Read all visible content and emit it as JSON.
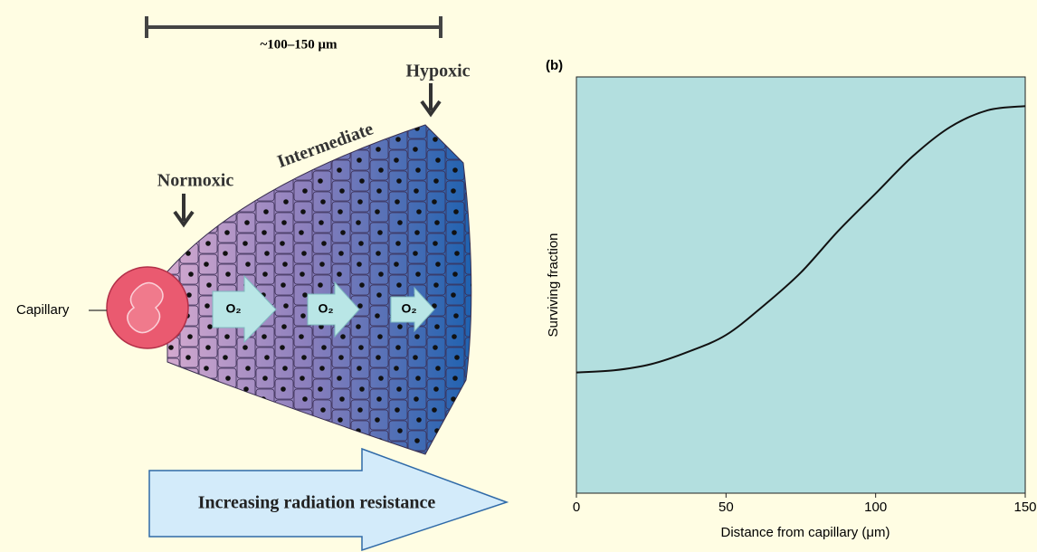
{
  "diagram": {
    "scale_label": "~100–150 μm",
    "hypoxic": "Hypoxic",
    "intermediate": "Intermediate",
    "normoxic": "Normoxic",
    "capillary": "Capillary",
    "oxygen_labels": [
      "O₂",
      "O₂",
      "O₂"
    ],
    "resistance": "Increasing radiation resistance"
  },
  "chart_data": {
    "type": "line",
    "panel_label": "(b)",
    "x_label": "Distance from capillary (μm)",
    "y_label": "Surviving fraction",
    "x": [
      0,
      12.5,
      25,
      37.5,
      50,
      62.5,
      75,
      87.5,
      100,
      112.5,
      125,
      137.5,
      150
    ],
    "values": [
      0.29,
      0.295,
      0.31,
      0.34,
      0.38,
      0.45,
      0.53,
      0.63,
      0.72,
      0.81,
      0.88,
      0.92,
      0.93
    ],
    "color": "#111111",
    "background": "#b3dfdf",
    "xlim": [
      0,
      150
    ],
    "xticks": [
      0,
      50,
      100,
      150
    ],
    "ylim": [
      0,
      1
    ]
  }
}
